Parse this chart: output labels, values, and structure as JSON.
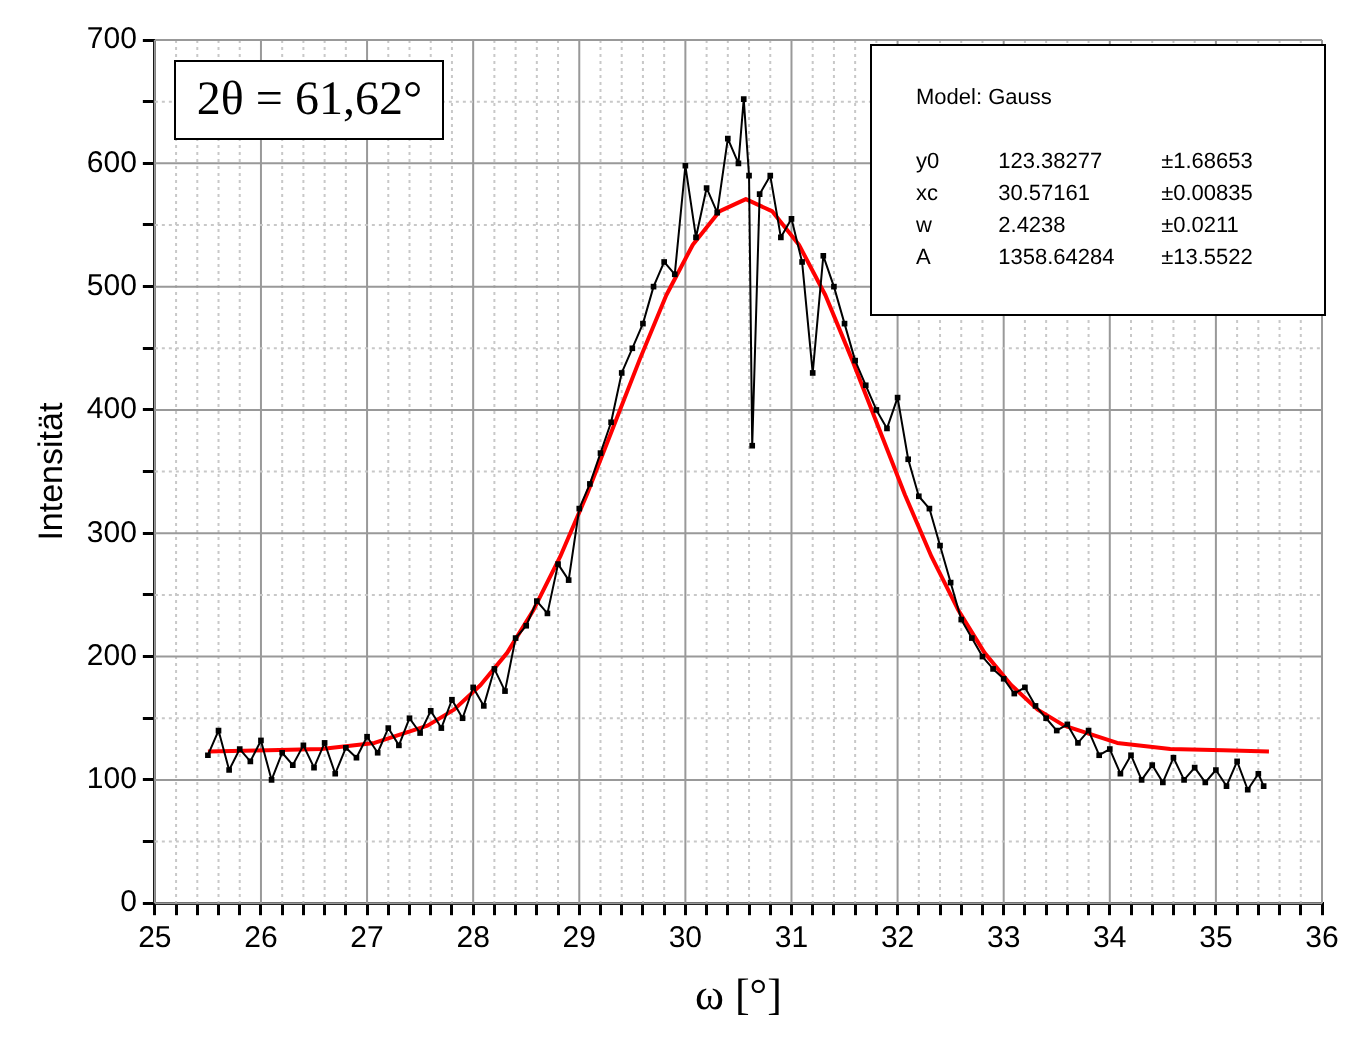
{
  "chart_data": {
    "type": "line",
    "xlabel": "ω [°]",
    "ylabel": "Intensität",
    "xlim": [
      25,
      36
    ],
    "ylim": [
      0,
      700
    ],
    "xticks": [
      25,
      {
        "value": 25.2,
        "label": null
      },
      {
        "value": 25.4,
        "label": null
      },
      {
        "value": 25.6,
        "label": null
      },
      {
        "value": 25.8,
        "label": null
      },
      26,
      {
        "value": 26.2,
        "label": null
      },
      {
        "value": 26.4,
        "label": null
      },
      {
        "value": 26.6,
        "label": null
      },
      {
        "value": 26.8,
        "label": null
      },
      27,
      {
        "value": 27.2,
        "label": null
      },
      {
        "value": 27.4,
        "label": null
      },
      {
        "value": 27.6,
        "label": null
      },
      {
        "value": 27.8,
        "label": null
      },
      28,
      {
        "value": 28.2,
        "label": null
      },
      {
        "value": 28.4,
        "label": null
      },
      {
        "value": 28.6,
        "label": null
      },
      {
        "value": 28.8,
        "label": null
      },
      29,
      {
        "value": 29.2,
        "label": null
      },
      {
        "value": 29.4,
        "label": null
      },
      {
        "value": 29.6,
        "label": null
      },
      {
        "value": 29.8,
        "label": null
      },
      30,
      {
        "value": 30.2,
        "label": null
      },
      {
        "value": 30.4,
        "label": null
      },
      {
        "value": 30.6,
        "label": null
      },
      {
        "value": 30.8,
        "label": null
      },
      31,
      {
        "value": 31.2,
        "label": null
      },
      {
        "value": 31.4,
        "label": null
      },
      {
        "value": 31.6,
        "label": null
      },
      {
        "value": 31.8,
        "label": null
      },
      32,
      {
        "value": 32.2,
        "label": null
      },
      {
        "value": 32.4,
        "label": null
      },
      {
        "value": 32.6,
        "label": null
      },
      {
        "value": 32.8,
        "label": null
      },
      33,
      {
        "value": 33.2,
        "label": null
      },
      {
        "value": 33.4,
        "label": null
      },
      {
        "value": 33.6,
        "label": null
      },
      {
        "value": 33.8,
        "label": null
      },
      34,
      {
        "value": 34.2,
        "label": null
      },
      {
        "value": 34.4,
        "label": null
      },
      {
        "value": 34.6,
        "label": null
      },
      {
        "value": 34.8,
        "label": null
      },
      35,
      {
        "value": 35.2,
        "label": null
      },
      {
        "value": 35.4,
        "label": null
      },
      {
        "value": 35.6,
        "label": null
      },
      {
        "value": 35.8,
        "label": null
      },
      36
    ],
    "yticks": [
      0,
      {
        "value": 50,
        "label": null
      },
      100,
      {
        "value": 150,
        "label": null
      },
      200,
      {
        "value": 250,
        "label": null
      },
      300,
      {
        "value": 350,
        "label": null
      },
      400,
      {
        "value": 450,
        "label": null
      },
      500,
      {
        "value": 550,
        "label": null
      },
      600,
      {
        "value": 650,
        "label": null
      },
      700
    ],
    "grid": true,
    "legend": false,
    "line_style": "solid",
    "annotations": [
      "2θ = 61,62°",
      "Model: Gauss",
      "y0 123.38277 ±1.68653",
      "xc 30.57161 ±0.00835",
      "w 2.4238 ±0.0211",
      "A 1358.64284 ±13.5522"
    ],
    "series": [
      {
        "color": "#000000",
        "marker": "square",
        "x": [
          25.5,
          25.6,
          25.7,
          25.8,
          25.9,
          26.0,
          26.1,
          26.2,
          26.3,
          26.4,
          26.5,
          26.6,
          26.7,
          26.8,
          26.9,
          27.0,
          27.1,
          27.2,
          27.3,
          27.4,
          27.5,
          27.6,
          27.7,
          27.8,
          27.9,
          28.0,
          28.1,
          28.2,
          28.3,
          28.4,
          28.5,
          28.6,
          28.7,
          28.8,
          28.9,
          29.0,
          29.1,
          29.2,
          29.3,
          29.4,
          29.5,
          29.6,
          29.7,
          29.8,
          29.9,
          30.0,
          30.1,
          30.2,
          30.3,
          30.4,
          30.5,
          30.55,
          30.6,
          30.63,
          30.7,
          30.8,
          30.9,
          31.0,
          31.1,
          31.2,
          31.3,
          31.4,
          31.5,
          31.6,
          31.7,
          31.8,
          31.9,
          32.0,
          32.1,
          32.2,
          32.3,
          32.4,
          32.5,
          32.6,
          32.7,
          32.8,
          32.9,
          33.0,
          33.1,
          33.2,
          33.3,
          33.4,
          33.5,
          33.6,
          33.7,
          33.8,
          33.9,
          34.0,
          34.1,
          34.2,
          34.3,
          34.4,
          34.5,
          34.6,
          34.7,
          34.8,
          34.9,
          35.0,
          35.1,
          35.2,
          35.3,
          35.4,
          35.45
        ],
        "values": [
          120,
          140,
          108,
          125,
          115,
          132,
          100,
          122,
          112,
          128,
          110,
          130,
          105,
          126,
          118,
          135,
          122,
          142,
          128,
          150,
          138,
          156,
          142,
          165,
          150,
          175,
          160,
          190,
          172,
          215,
          225,
          245,
          235,
          275,
          262,
          320,
          340,
          365,
          390,
          430,
          450,
          470,
          500,
          520,
          510,
          598,
          540,
          580,
          560,
          620,
          600,
          652,
          590,
          371,
          575,
          590,
          540,
          555,
          520,
          430,
          525,
          500,
          470,
          440,
          420,
          400,
          385,
          410,
          360,
          330,
          320,
          290,
          260,
          230,
          215,
          200,
          190,
          182,
          170,
          175,
          160,
          150,
          140,
          145,
          130,
          140,
          120,
          125,
          105,
          120,
          100,
          112,
          98,
          118,
          100,
          110,
          98,
          108,
          95,
          115,
          92,
          105,
          95
        ]
      },
      {
        "color": "#ff0000",
        "marker": "none",
        "x": [
          25.5,
          26.07,
          26.57,
          27.07,
          27.57,
          27.82,
          28.07,
          28.32,
          28.57,
          28.82,
          29.07,
          29.32,
          29.57,
          29.82,
          30.07,
          30.32,
          30.57,
          30.82,
          31.07,
          31.32,
          31.57,
          31.82,
          32.07,
          32.32,
          32.57,
          32.82,
          33.07,
          33.32,
          33.57,
          34.07,
          34.57,
          35.07,
          35.5
        ],
        "values": [
          123,
          124,
          125,
          130,
          144,
          157,
          177,
          203,
          238,
          281,
          331,
          386,
          441,
          493,
          534,
          561,
          571,
          561,
          534,
          493,
          441,
          386,
          331,
          281,
          238,
          203,
          177,
          157,
          144,
          130,
          125,
          124,
          123
        ]
      }
    ]
  }
}
